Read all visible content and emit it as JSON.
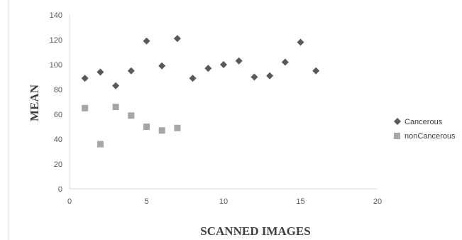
{
  "chart_data": {
    "type": "scatter",
    "xlabel": "SCANNED IMAGES",
    "ylabel": "MEAN",
    "xlim": [
      0,
      20
    ],
    "ylim": [
      0,
      140
    ],
    "xticks": [
      "0",
      "5",
      "10",
      "15",
      "20"
    ],
    "yticks": [
      "0",
      "20",
      "40",
      "60",
      "80",
      "100",
      "120",
      "140"
    ],
    "grid": false,
    "legend_position": "right",
    "series": [
      {
        "name": "Cancerous",
        "marker": "diamond",
        "color": "#595959",
        "x": [
          1,
          2,
          3,
          4,
          5,
          6,
          7,
          8,
          9,
          10,
          11,
          12,
          13,
          14,
          15,
          16
        ],
        "y": [
          89,
          94,
          83,
          95,
          119,
          99,
          121,
          89,
          97,
          100,
          103,
          90,
          91,
          102,
          118,
          95
        ]
      },
      {
        "name": "nonCancerous",
        "marker": "square",
        "color": "#a6a6a6",
        "x": [
          1,
          2,
          3,
          4,
          5,
          6,
          7
        ],
        "y": [
          65,
          36,
          66,
          59,
          50,
          47,
          49
        ]
      }
    ]
  }
}
